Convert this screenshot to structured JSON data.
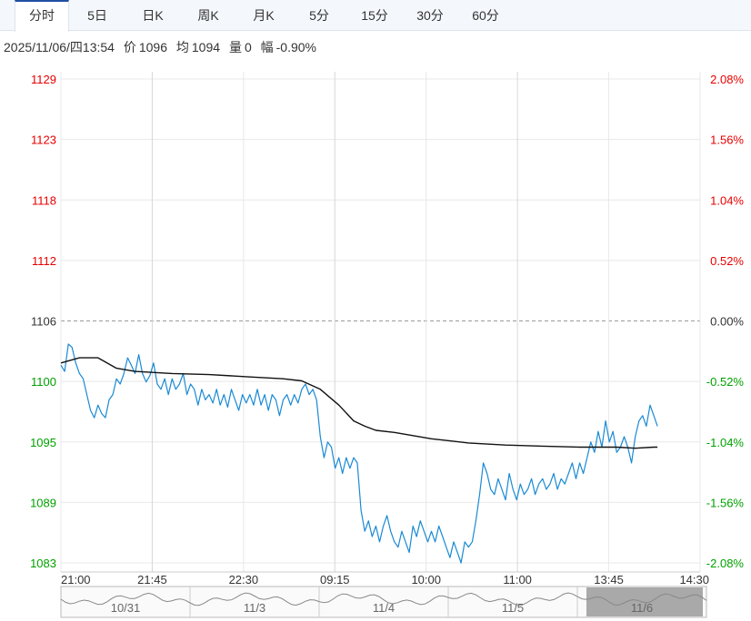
{
  "tabs": [
    {
      "label": "分时",
      "active": true
    },
    {
      "label": "5日",
      "active": false
    },
    {
      "label": "日K",
      "active": false
    },
    {
      "label": "周K",
      "active": false
    },
    {
      "label": "月K",
      "active": false
    },
    {
      "label": "5分",
      "active": false
    },
    {
      "label": "15分",
      "active": false
    },
    {
      "label": "30分",
      "active": false
    },
    {
      "label": "60分",
      "active": false
    }
  ],
  "info": {
    "datetime": "2025/11/06/四13:54",
    "price_label": "价",
    "price": "1096",
    "avg_label": "均",
    "avg": "1094",
    "volume_label": "量",
    "volume": "0",
    "change_label": "幅",
    "change": "-0.90%"
  },
  "colors": {
    "up": "#e60000",
    "down": "#00a000",
    "base": "#333333",
    "price_line": "#1a8ad4",
    "avg_line": "#111111",
    "grid": "#e8e8e8"
  },
  "chart_data": {
    "type": "line",
    "title": "",
    "xlabel": "",
    "ylabel": "",
    "ylim": [
      1083,
      1129
    ],
    "base_price": 1106,
    "grid": true,
    "y_ticks_left": [
      "1129",
      "1123",
      "1118",
      "1112",
      "1106",
      "1100",
      "1095",
      "1089",
      "1083"
    ],
    "y_ticks_right": [
      "2.08%",
      "1.56%",
      "1.04%",
      "0.52%",
      "0.00%",
      "-0.52%",
      "-1.04%",
      "-1.56%",
      "-2.08%"
    ],
    "x_ticks": [
      "21:00",
      "21:45",
      "22:30",
      "09:15",
      "10:00",
      "11:00",
      "13:45",
      "14:30"
    ],
    "x_range": [
      0,
      345
    ],
    "series": [
      {
        "key": "price",
        "x": [
          0,
          2,
          4,
          6,
          8,
          10,
          12,
          14,
          16,
          18,
          20,
          22,
          24,
          26,
          28,
          30,
          32,
          34,
          36,
          38,
          40,
          42,
          44,
          46,
          48,
          50,
          52,
          54,
          56,
          58,
          60,
          62,
          64,
          66,
          68,
          70,
          72,
          74,
          76,
          78,
          80,
          82,
          84,
          86,
          88,
          90,
          92,
          94,
          96,
          98,
          100,
          102,
          104,
          106,
          108,
          110,
          112,
          114,
          116,
          118,
          120,
          122,
          124,
          126,
          128,
          130,
          132,
          134,
          136,
          138,
          140,
          142,
          144,
          146,
          148,
          150,
          152,
          154,
          156,
          158,
          160,
          162,
          164,
          166,
          168,
          170,
          172,
          174,
          176,
          178,
          180,
          182,
          184,
          186,
          188,
          190,
          192,
          194,
          196,
          198,
          200,
          202,
          204,
          206,
          208,
          210,
          212,
          214,
          216,
          218,
          220,
          222,
          224,
          226,
          228,
          230,
          232,
          234,
          236,
          238,
          240,
          242,
          244,
          246,
          248,
          250,
          252,
          254,
          256,
          258,
          260,
          262,
          264,
          266,
          268,
          270,
          272,
          274,
          276,
          278,
          280,
          282,
          284
        ],
        "values": [
          1101.8,
          1101.2,
          1103.8,
          1103.5,
          1102.0,
          1101.0,
          1100.5,
          1099.0,
          1097.5,
          1096.8,
          1098.0,
          1097.2,
          1096.8,
          1098.5,
          1099.0,
          1100.5,
          1100.0,
          1101.0,
          1102.5,
          1101.8,
          1101.0,
          1102.8,
          1101.0,
          1100.2,
          1100.8,
          1102.0,
          1100.0,
          1099.5,
          1100.5,
          1099.0,
          1100.5,
          1099.5,
          1100.0,
          1101.0,
          1099.0,
          1100.0,
          1099.5,
          1098.0,
          1099.5,
          1098.5,
          1099.0,
          1098.2,
          1099.5,
          1098.0,
          1099.0,
          1097.8,
          1099.5,
          1098.5,
          1097.5,
          1099.0,
          1098.2,
          1099.0,
          1098.0,
          1099.5,
          1098.0,
          1099.0,
          1097.5,
          1099.0,
          1098.5,
          1097.0,
          1098.5,
          1099.0,
          1098.0,
          1099.0,
          1098.2,
          1099.5,
          1100.0,
          1099.0,
          1099.5,
          1098.5,
          1095.0,
          1093.0,
          1094.5,
          1094.0,
          1092.0,
          1093.0,
          1091.5,
          1093.0,
          1092.0,
          1093.0,
          1092.5,
          1088.0,
          1086.0,
          1087.0,
          1085.5,
          1086.5,
          1085.0,
          1086.5,
          1087.5,
          1086.0,
          1085.0,
          1084.5,
          1086.0,
          1085.0,
          1084.0,
          1086.5,
          1085.5,
          1087.0,
          1086.0,
          1085.0,
          1086.0,
          1085.0,
          1086.5,
          1085.5,
          1084.5,
          1083.5,
          1085.0,
          1084.0,
          1083.0,
          1085.0,
          1084.5,
          1085.0,
          1087.0,
          1089.5,
          1092.5,
          1091.5,
          1090.0,
          1089.5,
          1091.0,
          1090.0,
          1089.0,
          1091.5,
          1090.0,
          1089.0,
          1090.5,
          1089.5,
          1090.0,
          1091.0,
          1089.5,
          1090.5,
          1091.0,
          1090.0,
          1090.5,
          1091.5,
          1090.0,
          1091.0,
          1090.5,
          1091.5,
          1092.5,
          1091.0,
          1092.5,
          1091.5,
          1093.0
        ],
        "color": "#1a8ad4"
      },
      {
        "key": "price_tail",
        "x": [
          284,
          286,
          288,
          290,
          292,
          294,
          296,
          298,
          300,
          302,
          304,
          306,
          308,
          310,
          312,
          314,
          316,
          318,
          320,
          322
        ],
        "values": [
          1093.0,
          1094.5,
          1093.5,
          1095.5,
          1094.0,
          1096.5,
          1094.5,
          1095.5,
          1093.5,
          1094.0,
          1095.0,
          1094.0,
          1092.5,
          1095.0,
          1096.5,
          1097.0,
          1096.0,
          1098.0,
          1097.0,
          1096.0
        ],
        "color": "#1a8ad4"
      },
      {
        "key": "average",
        "x": [
          0,
          10,
          20,
          30,
          40,
          60,
          80,
          100,
          120,
          130,
          140,
          150,
          158,
          164,
          170,
          180,
          190,
          200,
          210,
          220,
          240,
          260,
          280,
          300,
          310,
          320,
          322
        ],
        "values": [
          1102.0,
          1102.5,
          1102.5,
          1101.5,
          1101.2,
          1101.0,
          1100.9,
          1100.7,
          1100.5,
          1100.3,
          1099.5,
          1098.0,
          1096.5,
          1096.0,
          1095.6,
          1095.4,
          1095.1,
          1094.8,
          1094.6,
          1094.4,
          1094.2,
          1094.1,
          1094.0,
          1094.0,
          1093.9,
          1094.0,
          1094.0
        ],
        "color": "#111111"
      }
    ],
    "navigator": {
      "labels": [
        "10/31",
        "11/3",
        "11/4",
        "11/5",
        "11/6"
      ],
      "selected": "11/6"
    }
  }
}
